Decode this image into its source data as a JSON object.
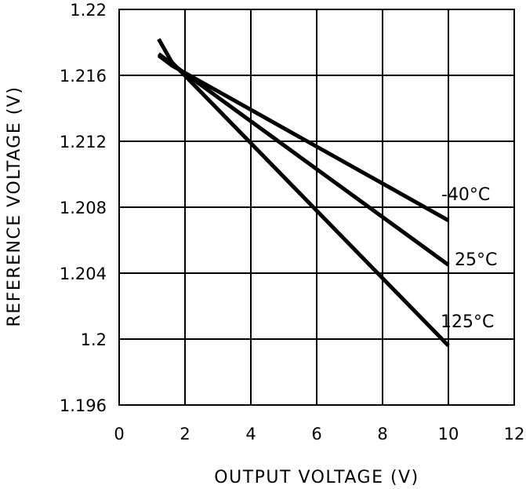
{
  "chart_data": {
    "type": "line",
    "title": "",
    "xlabel": "OUTPUT VOLTAGE (V)",
    "ylabel": "REFERENCE VOLTAGE (V)",
    "xlim": [
      0,
      12
    ],
    "ylim": [
      1.196,
      1.22
    ],
    "x_ticks": [
      "0",
      "2",
      "4",
      "6",
      "8",
      "10",
      "12"
    ],
    "y_ticks": [
      "1.196",
      "1.2",
      "1.204",
      "1.208",
      "1.212",
      "1.216",
      "1.22"
    ],
    "grid": true,
    "legend": "none",
    "series": [
      {
        "name": "-40°C",
        "x": [
          1.2,
          1.6,
          10
        ],
        "y": [
          1.2172,
          1.2166,
          1.2072
        ]
      },
      {
        "name": "25°C",
        "x": [
          1.2,
          1.6,
          10
        ],
        "y": [
          1.2173,
          1.2167,
          1.2045
        ]
      },
      {
        "name": "125°C",
        "x": [
          1.2,
          1.6,
          10
        ],
        "y": [
          1.2182,
          1.2168,
          1.1996
        ]
      }
    ]
  }
}
